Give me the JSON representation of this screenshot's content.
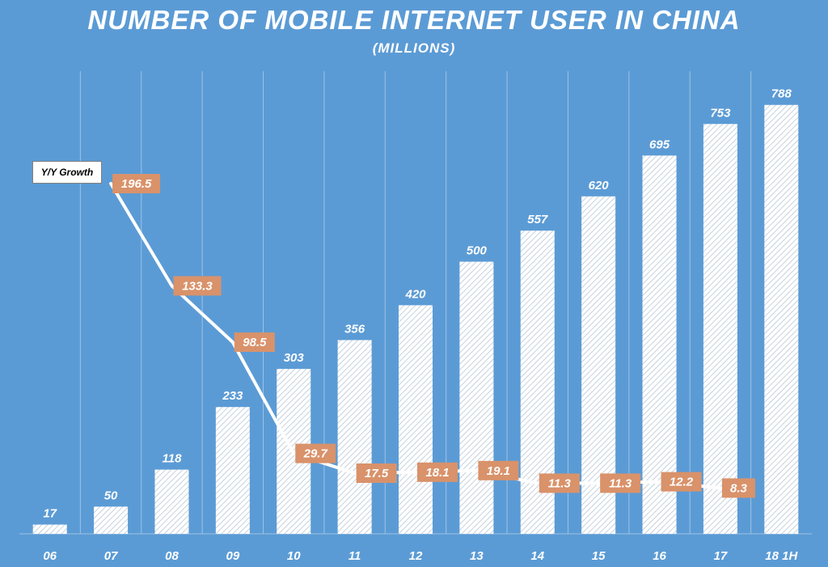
{
  "chart_data": {
    "type": "bar",
    "title": "NUMBER OF MOBILE INTERNET USER IN CHINA",
    "subtitle": "(MILLIONS)",
    "categories": [
      "06",
      "07",
      "08",
      "09",
      "10",
      "11",
      "12",
      "13",
      "14",
      "15",
      "16",
      "17",
      "18  1H"
    ],
    "values": [
      17,
      50,
      118,
      233,
      303,
      356,
      420,
      500,
      557,
      620,
      695,
      753,
      788
    ],
    "ylim": [
      0,
      850
    ],
    "growth_series": {
      "name": "Y/Y Growth",
      "start_index": 1,
      "values": [
        196.5,
        133.3,
        98.5,
        29.7,
        17.5,
        18.1,
        19.1,
        11.3,
        11.3,
        12.2,
        8.3
      ],
      "labels": [
        "196.5",
        "133.3",
        "98.5",
        "29.7",
        "17.5",
        "18.1",
        "19.1",
        "11.3",
        "11.3",
        "12.2",
        "8.3"
      ],
      "ylim": [
        0,
        210
      ]
    },
    "grid": true
  },
  "colors": {
    "background": "#5b9bd5",
    "bar": "#ffffff",
    "line": "#ffffff",
    "growth_label_bg": "#d9926a"
  }
}
